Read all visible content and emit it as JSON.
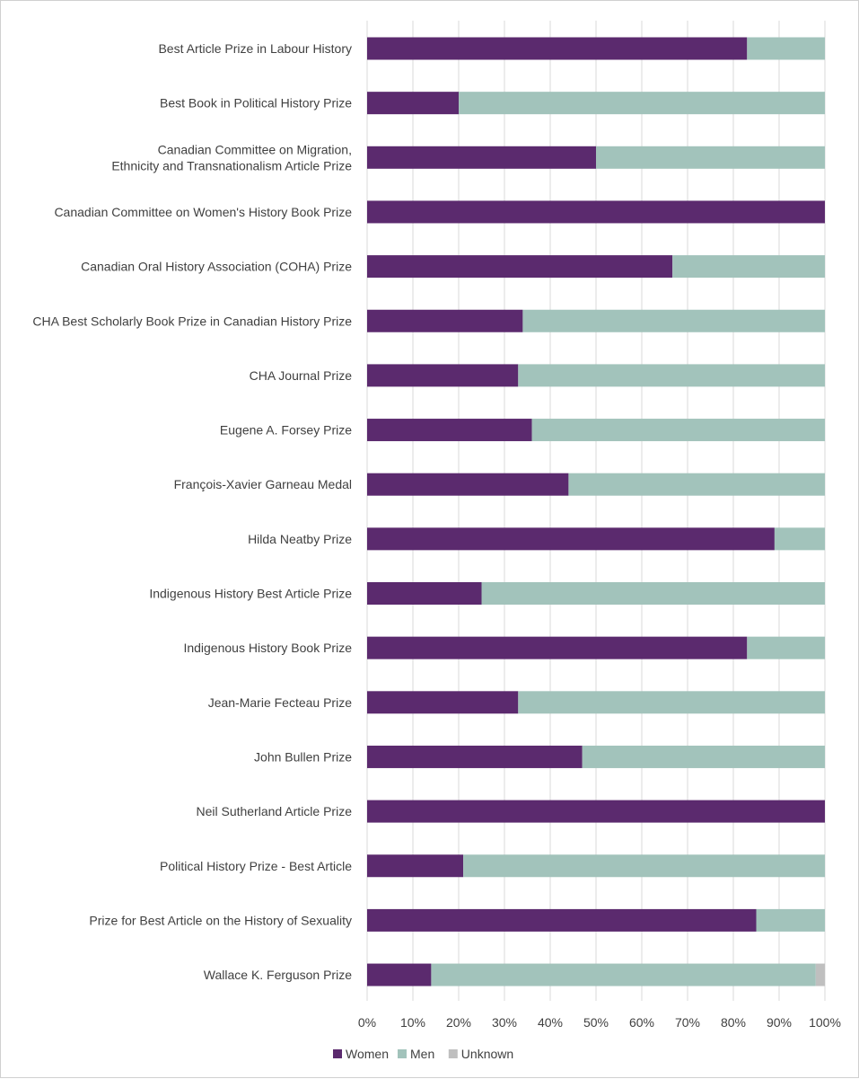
{
  "chart_data": {
    "type": "bar",
    "orientation": "horizontal",
    "stacked": true,
    "stack_mode": "percent",
    "title": "",
    "xlabel": "",
    "ylabel": "",
    "xlim": [
      0,
      100
    ],
    "x_ticks": [
      "0%",
      "10%",
      "20%",
      "30%",
      "40%",
      "50%",
      "60%",
      "70%",
      "80%",
      "90%",
      "100%"
    ],
    "grid": "vertical",
    "legend_position": "bottom",
    "categories": [
      "Best Article Prize in Labour History",
      "Best Book in Political History Prize",
      "Canadian Committee on Migration,\nEthnicity and Transnationalism Article Prize",
      "Canadian Committee on Women's History Book Prize",
      "Canadian Oral History Association (COHA) Prize",
      "CHA Best Scholarly Book Prize in Canadian History Prize",
      "CHA Journal Prize",
      "Eugene A. Forsey Prize",
      "François-Xavier Garneau Medal",
      "Hilda Neatby Prize",
      "Indigenous History Best Article Prize",
      "Indigenous History Book Prize",
      "Jean-Marie Fecteau Prize",
      "John Bullen Prize",
      "Neil Sutherland Article Prize",
      "Political History Prize - Best Article",
      "Prize for Best Article on the History of Sexuality",
      "Wallace K. Ferguson Prize"
    ],
    "series": [
      {
        "name": "Women",
        "color": "#5b2a6e",
        "values": [
          83,
          20,
          50,
          100,
          66.7,
          34,
          33,
          36,
          44,
          89,
          25,
          83,
          33,
          47,
          100,
          21,
          85,
          14
        ]
      },
      {
        "name": "Men",
        "color": "#a2c3bb",
        "values": [
          17,
          80,
          50,
          0,
          33.3,
          66,
          67,
          64,
          56,
          11,
          75,
          17,
          67,
          53,
          0,
          79,
          15,
          84
        ]
      },
      {
        "name": "Unknown",
        "color": "#bfbfbf",
        "values": [
          0,
          0,
          0,
          0,
          0,
          0,
          0,
          0,
          0,
          0,
          0,
          0,
          0,
          0,
          0,
          0,
          0,
          2
        ]
      }
    ]
  }
}
